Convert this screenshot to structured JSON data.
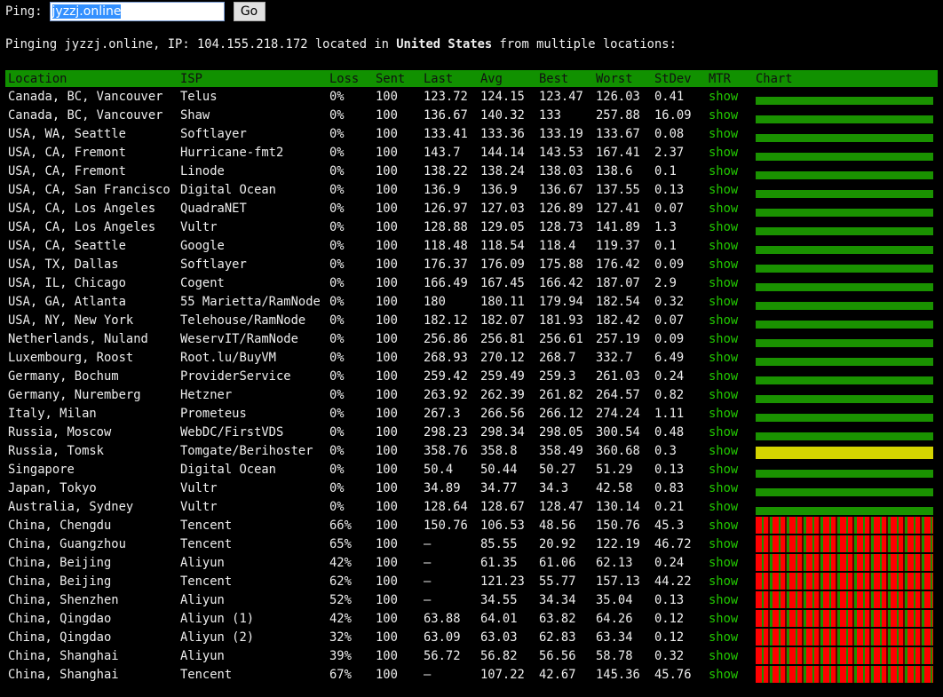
{
  "header": {
    "label": "Ping:",
    "input": "jyzzj.online",
    "button": "Go"
  },
  "message": {
    "prefix": "Pinging jyzzj.online, IP: 104.155.218.172 located in",
    "country": "United States",
    "suffix": "from multiple locations:"
  },
  "table": {
    "columns": [
      "Location",
      "ISP",
      "Loss",
      "Sent",
      "Last",
      "Avg",
      "Best",
      "Worst",
      "StDev",
      "MTR",
      "Chart"
    ],
    "rows": [
      [
        "Canada, BC, Vancouver",
        "Telus",
        "0%",
        "100",
        "123.72",
        "124.15",
        "123.47",
        "126.03",
        "0.41",
        "show"
      ],
      [
        "Canada, BC, Vancouver",
        "Shaw",
        "0%",
        "100",
        "136.67",
        "140.32",
        "133",
        "257.88",
        "16.09",
        "show"
      ],
      [
        "USA, WA, Seattle",
        "Softlayer",
        "0%",
        "100",
        "133.41",
        "133.36",
        "133.19",
        "133.67",
        "0.08",
        "show"
      ],
      [
        "USA, CA, Fremont",
        "Hurricane-fmt2",
        "0%",
        "100",
        "143.7",
        "144.14",
        "143.53",
        "167.41",
        "2.37",
        "show"
      ],
      [
        "USA, CA, Fremont",
        "Linode",
        "0%",
        "100",
        "138.22",
        "138.24",
        "138.03",
        "138.6",
        "0.1",
        "show"
      ],
      [
        "USA, CA, San Francisco",
        "Digital Ocean",
        "0%",
        "100",
        "136.9",
        "136.9",
        "136.67",
        "137.55",
        "0.13",
        "show"
      ],
      [
        "USA, CA, Los Angeles",
        "QuadraNET",
        "0%",
        "100",
        "126.97",
        "127.03",
        "126.89",
        "127.41",
        "0.07",
        "show"
      ],
      [
        "USA, CA, Los Angeles",
        "Vultr",
        "0%",
        "100",
        "128.88",
        "129.05",
        "128.73",
        "141.89",
        "1.3",
        "show"
      ],
      [
        "USA, CA, Seattle",
        "Google",
        "0%",
        "100",
        "118.48",
        "118.54",
        "118.4",
        "119.37",
        "0.1",
        "show"
      ],
      [
        "USA, TX, Dallas",
        "Softlayer",
        "0%",
        "100",
        "176.37",
        "176.09",
        "175.88",
        "176.42",
        "0.09",
        "show"
      ],
      [
        "USA, IL, Chicago",
        "Cogent",
        "0%",
        "100",
        "166.49",
        "167.45",
        "166.42",
        "187.07",
        "2.9",
        "show"
      ],
      [
        "USA, GA, Atlanta",
        "55 Marietta/RamNode",
        "0%",
        "100",
        "180",
        "180.11",
        "179.94",
        "182.54",
        "0.32",
        "show"
      ],
      [
        "USA, NY, New York",
        "Telehouse/RamNode",
        "0%",
        "100",
        "182.12",
        "182.07",
        "181.93",
        "182.42",
        "0.07",
        "show"
      ],
      [
        "Netherlands, Nuland",
        "WeservIT/RamNode",
        "0%",
        "100",
        "256.86",
        "256.81",
        "256.61",
        "257.19",
        "0.09",
        "show"
      ],
      [
        "Luxembourg, Roost",
        "Root.lu/BuyVM",
        "0%",
        "100",
        "268.93",
        "270.12",
        "268.7",
        "332.7",
        "6.49",
        "show"
      ],
      [
        "Germany, Bochum",
        "ProviderService",
        "0%",
        "100",
        "259.42",
        "259.49",
        "259.3",
        "261.03",
        "0.24",
        "show"
      ],
      [
        "Germany, Nuremberg",
        "Hetzner",
        "0%",
        "100",
        "263.92",
        "262.39",
        "261.82",
        "264.57",
        "0.82",
        "show"
      ],
      [
        "Italy, Milan",
        "Prometeus",
        "0%",
        "100",
        "267.3",
        "266.56",
        "266.12",
        "274.24",
        "1.11",
        "show"
      ],
      [
        "Russia, Moscow",
        "WebDC/FirstVDS",
        "0%",
        "100",
        "298.23",
        "298.34",
        "298.05",
        "300.54",
        "0.48",
        "show"
      ],
      [
        "Russia, Tomsk",
        "Tomgate/Berihoster",
        "0%",
        "100",
        "358.76",
        "358.8",
        "358.49",
        "360.68",
        "0.3",
        "show"
      ],
      [
        "Singapore",
        "Digital Ocean",
        "0%",
        "100",
        "50.4",
        "50.44",
        "50.27",
        "51.29",
        "0.13",
        "show"
      ],
      [
        "Japan, Tokyo",
        "Vultr",
        "0%",
        "100",
        "34.89",
        "34.77",
        "34.3",
        "42.58",
        "0.83",
        "show"
      ],
      [
        "Australia, Sydney",
        "Vultr",
        "0%",
        "100",
        "128.64",
        "128.67",
        "128.47",
        "130.14",
        "0.21",
        "show"
      ],
      [
        "China, Chengdu",
        "Tencent",
        "66%",
        "100",
        "150.76",
        "106.53",
        "48.56",
        "150.76",
        "45.3",
        "show"
      ],
      [
        "China, Guangzhou",
        "Tencent",
        "65%",
        "100",
        "–",
        "85.55",
        "20.92",
        "122.19",
        "46.72",
        "show"
      ],
      [
        "China, Beijing",
        "Aliyun",
        "42%",
        "100",
        "–",
        "61.35",
        "61.06",
        "62.13",
        "0.24",
        "show"
      ],
      [
        "China, Beijing",
        "Tencent",
        "62%",
        "100",
        "–",
        "121.23",
        "55.77",
        "157.13",
        "44.22",
        "show"
      ],
      [
        "China, Shenzhen",
        "Aliyun",
        "52%",
        "100",
        "–",
        "34.55",
        "34.34",
        "35.04",
        "0.13",
        "show"
      ],
      [
        "China, Qingdao",
        "Aliyun (1)",
        "42%",
        "100",
        "63.88",
        "64.01",
        "63.82",
        "64.26",
        "0.12",
        "show"
      ],
      [
        "China, Qingdao",
        "Aliyun (2)",
        "32%",
        "100",
        "63.09",
        "63.03",
        "62.83",
        "63.34",
        "0.12",
        "show"
      ],
      [
        "China, Shanghai",
        "Aliyun",
        "39%",
        "100",
        "56.72",
        "56.82",
        "56.56",
        "58.78",
        "0.32",
        "show"
      ],
      [
        "China, Shanghai",
        "Tencent",
        "67%",
        "100",
        "–",
        "107.22",
        "42.67",
        "145.36",
        "45.76",
        "show"
      ]
    ]
  }
}
